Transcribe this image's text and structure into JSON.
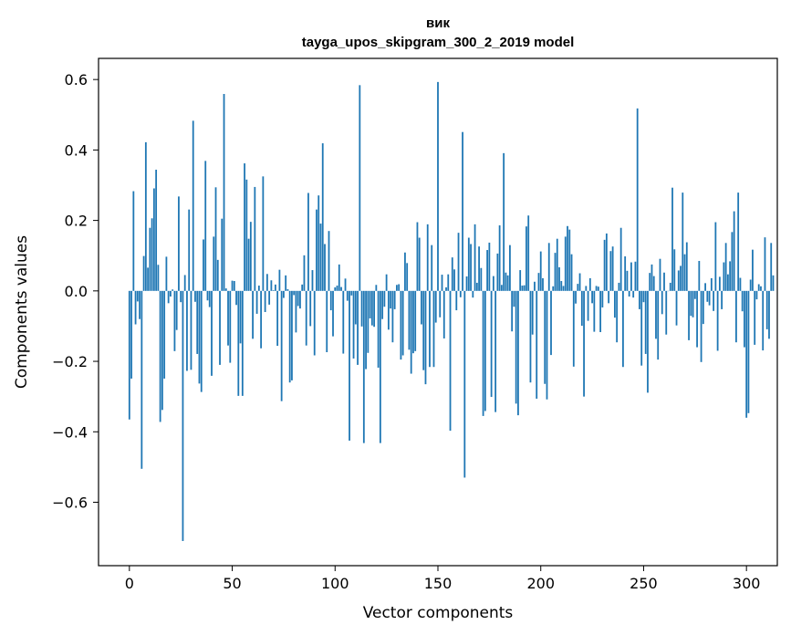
{
  "chart_data": {
    "type": "bar",
    "title": "вик",
    "subtitle": "tayga_upos_skipgram_300_2_2019 model",
    "xlabel": "Vector components",
    "ylabel": "Components values",
    "xlim": [
      -15,
      315
    ],
    "ylim": [
      -0.78,
      0.66
    ],
    "x_ticks": [
      0,
      50,
      100,
      150,
      200,
      250,
      300
    ],
    "y_ticks": [
      -0.6,
      -0.4,
      -0.2,
      0.0,
      0.2,
      0.4,
      0.6
    ],
    "x_tick_labels": [
      "0",
      "50",
      "100",
      "150",
      "200",
      "250",
      "300"
    ],
    "y_tick_labels": [
      "−0.6",
      "−0.4",
      "−0.2",
      "0.0",
      "0.2",
      "0.4",
      "0.6"
    ],
    "bar_color": "#1f77b4",
    "grid": false,
    "values": [
      -0.365,
      -0.249,
      0.283,
      -0.095,
      -0.03,
      -0.08,
      -0.505,
      0.099,
      0.422,
      0.066,
      0.179,
      0.206,
      0.291,
      0.344,
      0.074,
      -0.372,
      -0.338,
      -0.249,
      0.097,
      -0.035,
      -0.016,
      0.004,
      -0.171,
      -0.111,
      0.268,
      -0.032,
      -0.71,
      0.045,
      -0.227,
      0.231,
      -0.224,
      0.483,
      -0.031,
      -0.179,
      -0.263,
      -0.287,
      0.146,
      0.369,
      -0.027,
      -0.046,
      -0.241,
      0.154,
      0.294,
      0.088,
      -0.21,
      0.205,
      0.559,
      0.007,
      -0.155,
      -0.204,
      0.029,
      0.028,
      -0.04,
      -0.298,
      -0.149,
      -0.298,
      0.362,
      0.316,
      0.148,
      0.196,
      -0.136,
      0.295,
      -0.065,
      0.015,
      -0.163,
      0.325,
      -0.06,
      0.048,
      -0.039,
      0.03,
      0.002,
      0.018,
      -0.156,
      0.06,
      -0.313,
      -0.02,
      0.044,
      0.005,
      -0.26,
      -0.254,
      -0.012,
      -0.118,
      -0.043,
      -0.05,
      0.018,
      0.101,
      -0.155,
      0.278,
      -0.1,
      0.059,
      -0.183,
      0.231,
      0.271,
      0.191,
      0.419,
      0.133,
      -0.174,
      0.17,
      -0.055,
      -0.129,
      0.01,
      0.015,
      0.075,
      0.011,
      -0.178,
      0.035,
      -0.028,
      -0.425,
      -0.013,
      -0.192,
      -0.095,
      -0.21,
      0.584,
      -0.101,
      -0.432,
      -0.222,
      -0.176,
      -0.078,
      -0.098,
      -0.102,
      0.017,
      -0.218,
      -0.432,
      -0.08,
      -0.045,
      0.047,
      -0.11,
      -0.05,
      -0.146,
      -0.052,
      0.017,
      0.019,
      -0.195,
      -0.183,
      0.109,
      0.079,
      -0.167,
      -0.235,
      -0.177,
      -0.171,
      0.195,
      0.151,
      -0.095,
      -0.225,
      -0.265,
      0.189,
      -0.216,
      0.13,
      -0.216,
      -0.09,
      0.593,
      -0.075,
      0.046,
      -0.135,
      0.01,
      0.047,
      -0.397,
      0.095,
      0.061,
      -0.055,
      0.165,
      -0.018,
      0.451,
      -0.53,
      0.041,
      0.151,
      0.133,
      -0.019,
      0.189,
      0.023,
      0.126,
      0.065,
      -0.355,
      -0.341,
      0.116,
      0.137,
      -0.301,
      0.042,
      -0.344,
      0.106,
      0.186,
      0.017,
      0.391,
      0.052,
      0.044,
      0.13,
      -0.115,
      -0.045,
      -0.32,
      -0.353,
      0.059,
      0.015,
      0.016,
      0.183,
      0.214,
      -0.26,
      -0.124,
      0.026,
      -0.306,
      0.051,
      0.112,
      0.036,
      -0.264,
      -0.308,
      0.136,
      -0.182,
      0.013,
      0.108,
      0.148,
      0.067,
      0.028,
      0.014,
      0.154,
      0.184,
      0.174,
      0.104,
      -0.215,
      -0.036,
      0.02,
      0.05,
      -0.099,
      -0.3,
      0.014,
      -0.085,
      0.036,
      -0.035,
      -0.116,
      0.014,
      0.012,
      -0.117,
      -0.047,
      0.145,
      0.163,
      -0.035,
      0.113,
      0.126,
      -0.076,
      -0.146,
      0.023,
      0.179,
      -0.216,
      0.098,
      0.057,
      -0.016,
      0.081,
      -0.019,
      0.083,
      0.518,
      -0.052,
      -0.212,
      -0.032,
      -0.179,
      -0.289,
      0.051,
      0.075,
      0.042,
      -0.136,
      -0.195,
      0.091,
      -0.066,
      0.052,
      -0.124,
      0.0,
      0.023,
      0.293,
      0.118,
      -0.098,
      0.058,
      0.071,
      0.279,
      0.104,
      0.138,
      -0.14,
      -0.071,
      -0.075,
      -0.023,
      -0.16,
      0.085,
      -0.202,
      -0.094,
      0.022,
      -0.031,
      -0.041,
      0.036,
      -0.057,
      0.195,
      -0.17,
      0.04,
      -0.052,
      0.081,
      0.136,
      0.047,
      0.084,
      0.167,
      0.226,
      -0.146,
      0.279,
      0.037,
      -0.058,
      -0.16,
      -0.36,
      -0.347,
      0.032,
      0.117,
      -0.153,
      -0.024,
      0.019,
      0.013,
      -0.169,
      0.152,
      -0.109,
      -0.136,
      0.136,
      0.044
    ]
  }
}
